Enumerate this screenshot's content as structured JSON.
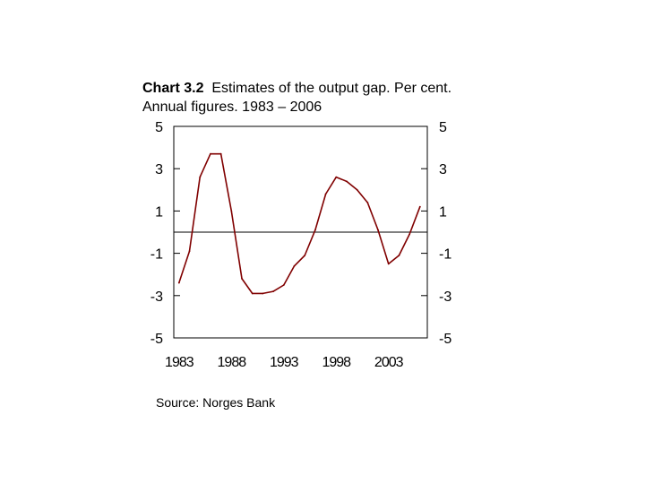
{
  "chart_data": {
    "type": "line",
    "title_number": "Chart 3.2",
    "title_text": "Estimates of the output gap. Per cent. Annual figures. 1983 – 2006",
    "source": "Source: Norges Bank",
    "ylim": [
      -5,
      5
    ],
    "yticks": [
      5,
      3,
      1,
      -1,
      -3,
      -5
    ],
    "xlim": [
      1982.5,
      2006.7
    ],
    "xticks": [
      1983,
      1988,
      1993,
      1998,
      2003
    ],
    "reference_line_y": 0,
    "grid": false,
    "series": [
      {
        "name": "Output gap",
        "color": "#800000",
        "x": [
          1983,
          1984,
          1985,
          1986,
          1987,
          1988,
          1989,
          1990,
          1991,
          1992,
          1993,
          1994,
          1995,
          1996,
          1997,
          1998,
          1999,
          2000,
          2001,
          2002,
          2003,
          2004,
          2005,
          2006
        ],
        "y": [
          -2.4,
          -0.9,
          2.6,
          3.7,
          3.7,
          1.0,
          -2.2,
          -2.9,
          -2.9,
          -2.8,
          -2.5,
          -1.6,
          -1.1,
          0.1,
          1.8,
          2.6,
          2.4,
          2.0,
          1.4,
          0.1,
          -1.5,
          -1.1,
          -0.1,
          1.2
        ]
      }
    ]
  }
}
